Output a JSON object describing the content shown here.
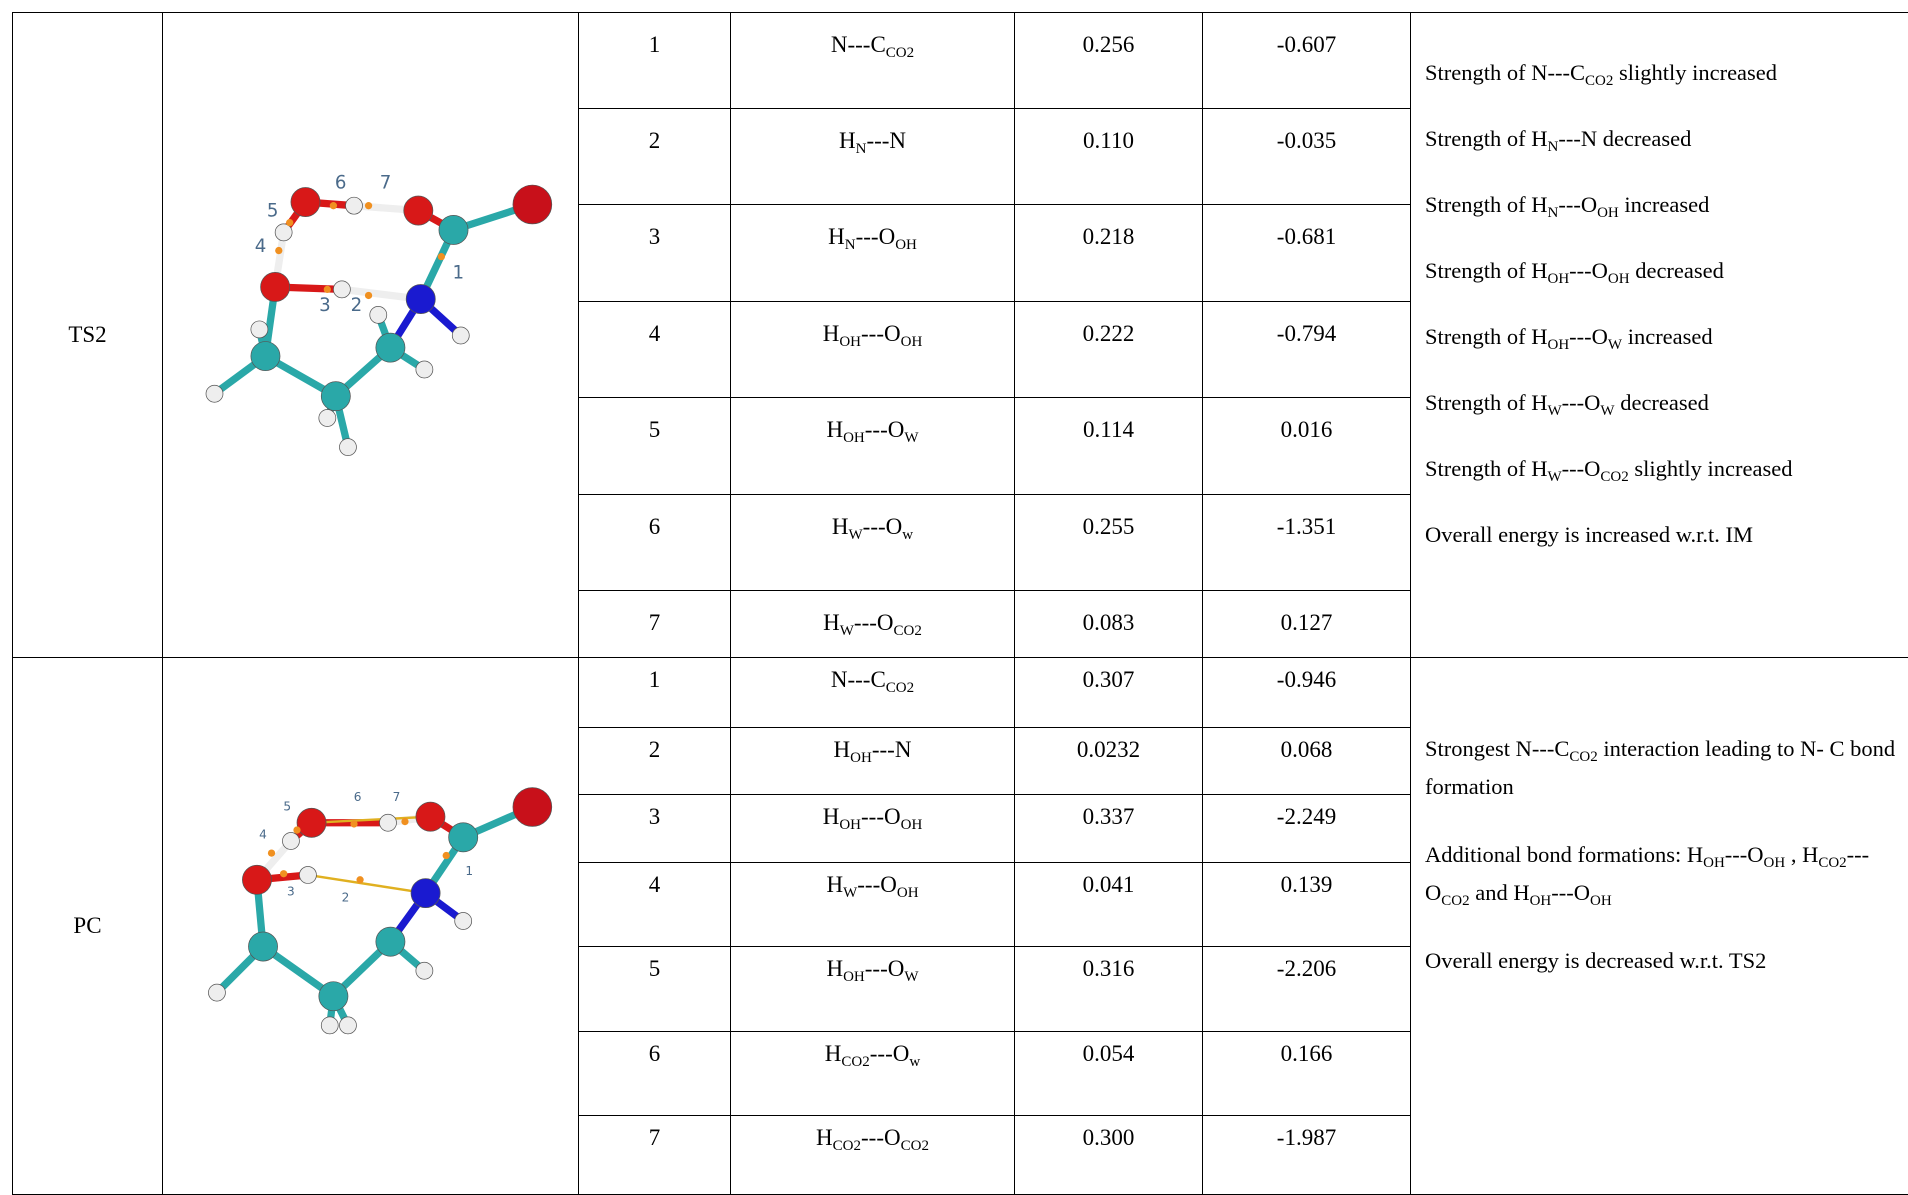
{
  "table": {
    "groups": [
      {
        "label": "TS2",
        "diagram_labels": [
          "1",
          "2",
          "3",
          "4",
          "5",
          "6",
          "7"
        ],
        "rows": [
          [
            1,
            [
              "N---C",
              "CO2"
            ],
            "0.256",
            "-0.607"
          ],
          [
            2,
            [
              "H",
              "N",
              "---N"
            ],
            "0.110",
            "-0.035"
          ],
          [
            3,
            [
              "H",
              "N",
              "---O",
              "OH"
            ],
            "0.218",
            "-0.681"
          ],
          [
            4,
            [
              "H",
              "OH",
              "---O",
              "OH"
            ],
            "0.222",
            "-0.794"
          ],
          [
            5,
            [
              "H",
              "OH",
              "---O",
              "W"
            ],
            "0.114",
            "0.016"
          ],
          [
            6,
            [
              "H",
              "W",
              "---O",
              "w"
            ],
            "0.255",
            "-1.351"
          ],
          [
            7,
            [
              "H",
              "W",
              "---O",
              "CO2"
            ],
            "0.083",
            "0.127"
          ]
        ],
        "comments": [
          [
            "Strength of N---C",
            "CO2",
            " slightly increased"
          ],
          [
            "Strength of H",
            "N",
            "---N decreased"
          ],
          [
            "Strength of H",
            "N",
            "---O",
            "OH",
            " increased"
          ],
          [
            "Strength of H",
            "OH",
            "---O",
            "OH",
            " decreased"
          ],
          [
            "Strength of H",
            "OH",
            "---O",
            "W",
            " increased"
          ],
          [
            "Strength of H",
            "W",
            "---O",
            "W",
            " decreased"
          ],
          [
            "Strength of H",
            "W",
            "---O",
            "CO2",
            " slightly increased"
          ],
          [
            "Overall energy is increased w.r.t. IM"
          ]
        ]
      },
      {
        "label": "PC",
        "diagram_labels": [
          "1",
          "2",
          "3",
          "4",
          "5",
          "6",
          "7"
        ],
        "rows": [
          [
            1,
            [
              "N---C",
              "CO2"
            ],
            "0.307",
            "-0.946"
          ],
          [
            2,
            [
              "H",
              "OH",
              "---N"
            ],
            "0.0232",
            "0.068"
          ],
          [
            3,
            [
              "H",
              "OH",
              "---O",
              "OH"
            ],
            "0.337",
            "-2.249"
          ],
          [
            4,
            [
              "H",
              "W",
              "---O",
              "OH"
            ],
            "0.041",
            "0.139"
          ],
          [
            5,
            [
              "H",
              "OH",
              "---O",
              "W"
            ],
            "0.316",
            "-2.206"
          ],
          [
            6,
            [
              "H",
              "CO2",
              "---O",
              "w"
            ],
            "0.054",
            "0.166"
          ],
          [
            7,
            [
              "H",
              "CO2",
              "---O",
              "CO2"
            ],
            "0.300",
            "-1.987"
          ]
        ],
        "comments": [
          [
            "Strongest N---C",
            "CO2",
            " interaction leading to N- C bond formation"
          ],
          [
            "Additional bond formations: H",
            "OH",
            "---O",
            "OH",
            " , H",
            "CO2",
            "---O",
            "CO2",
            " and H",
            "OH",
            "---O",
            "OH"
          ],
          [
            "Overall energy is decreased w.r.t. TS2"
          ]
        ]
      }
    ]
  }
}
